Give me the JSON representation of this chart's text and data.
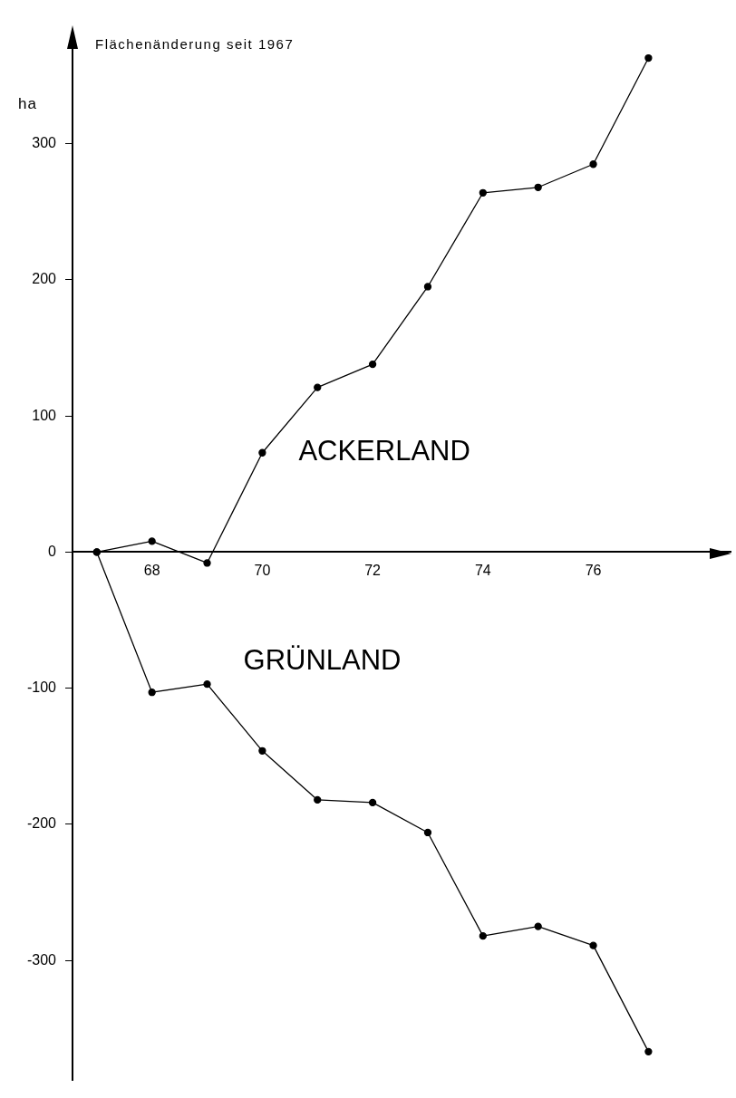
{
  "chart_data": {
    "type": "line",
    "title": "Flächenänderung seit 1967",
    "ylabel": "ha",
    "x": [
      67,
      68,
      69,
      70,
      71,
      72,
      73,
      74,
      75,
      76,
      77
    ],
    "series": [
      {
        "name": "ACKERLAND",
        "color": "#000000",
        "values": [
          0,
          8,
          -8,
          73,
          121,
          138,
          195,
          264,
          268,
          285,
          363
        ]
      },
      {
        "name": "GRÜNLAND",
        "color": "#000000",
        "values": [
          0,
          -103,
          -97,
          -146,
          -182,
          -184,
          -206,
          -282,
          -275,
          -289,
          -367
        ]
      }
    ],
    "xlim": [
      66.56,
      78.5
    ],
    "xticks": [
      68,
      70,
      72,
      74,
      76
    ],
    "ylim": [
      -388,
      379
    ],
    "yticks": [
      -300,
      -200,
      -100,
      0,
      100,
      200,
      300
    ],
    "grid": false,
    "legend": false,
    "marker": "circle",
    "line_style": "solid"
  }
}
